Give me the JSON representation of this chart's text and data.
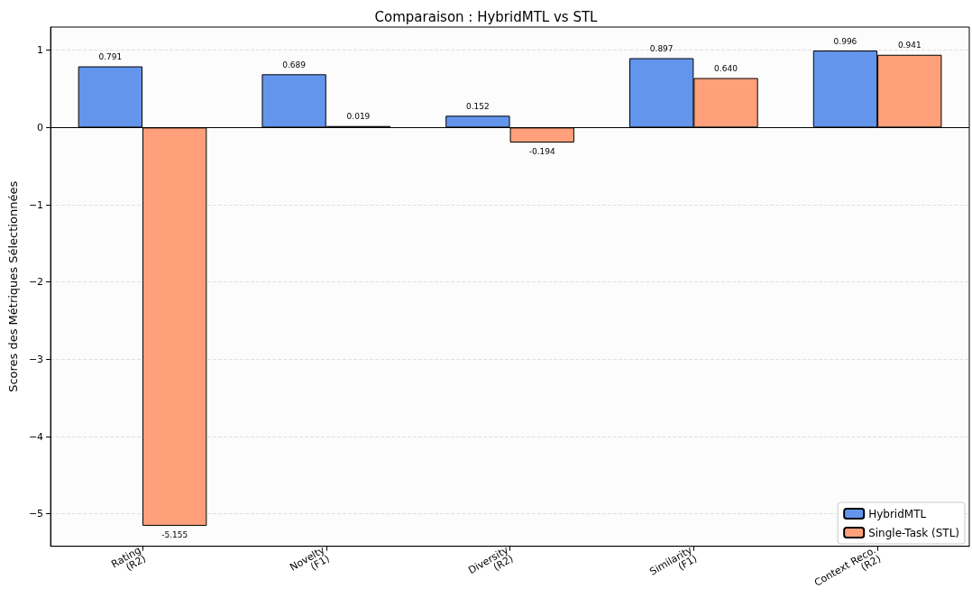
{
  "chart_data": {
    "type": "bar",
    "title": "Comparaison : HybridMTL vs STL",
    "ylabel": "Scores des Métriques Sélectionnées",
    "categories": [
      "Rating\n(R2)",
      "Novelty\n(F1)",
      "Diversity\n(R2)",
      "Similarity\n(F1)",
      "Context Reco.\n(R2)"
    ],
    "series": [
      {
        "name": "HybridMTL",
        "color": "#6495ed",
        "values": [
          0.791,
          0.689,
          0.152,
          0.897,
          0.996
        ],
        "value_labels": [
          "0.791",
          "0.689",
          "0.152",
          "0.897",
          "0.996"
        ]
      },
      {
        "name": "Single-Task (STL)",
        "color": "#ffa07a",
        "values": [
          -5.155,
          0.019,
          -0.194,
          0.64,
          0.941
        ],
        "value_labels": [
          "-5.155",
          "0.019",
          "-0.194",
          "0.640",
          "0.941"
        ]
      }
    ],
    "ylim": [
      -5.42,
      1.3
    ],
    "yticks": [
      -5,
      -4,
      -3,
      -2,
      -1,
      0,
      1
    ],
    "grid": "y",
    "legend": "bottom right",
    "ref_lines": [
      {
        "axis": "y",
        "value": 0,
        "color": "#000000"
      }
    ]
  }
}
